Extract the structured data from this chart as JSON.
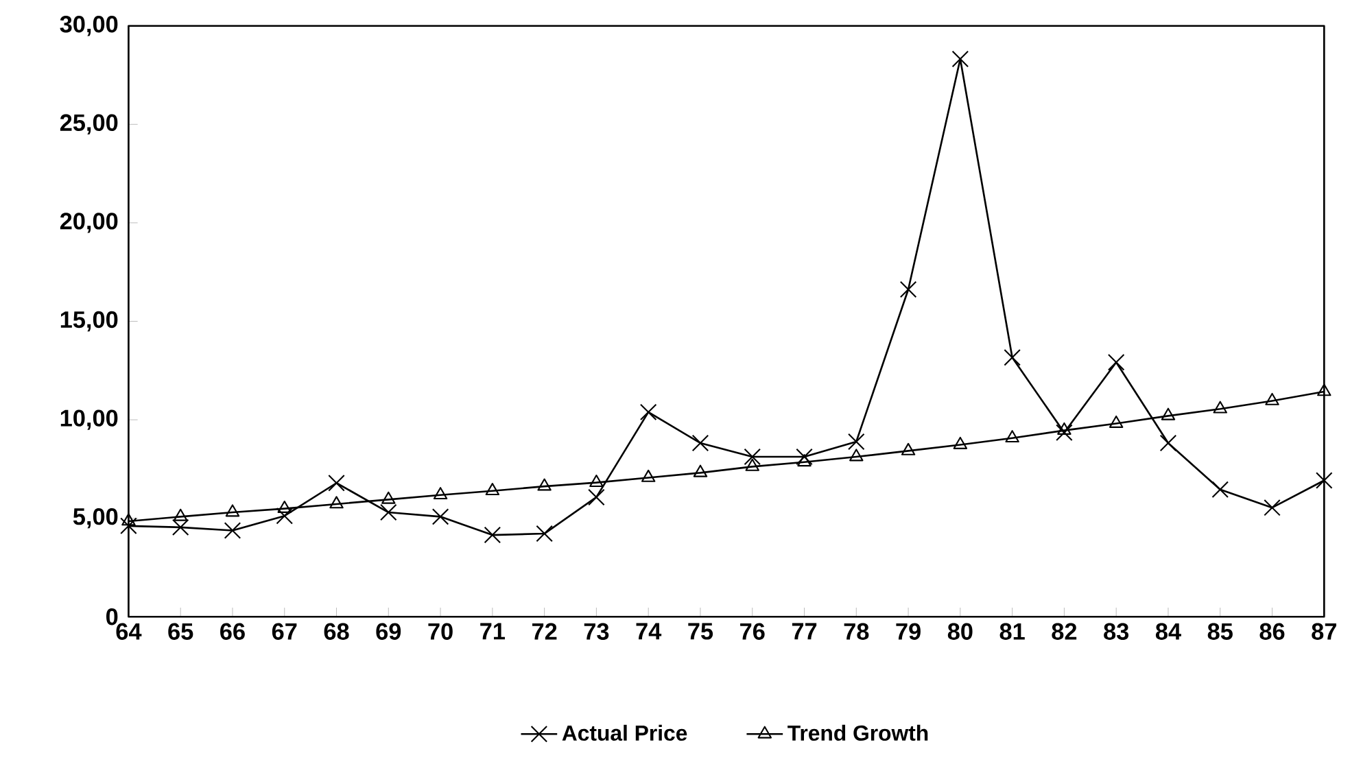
{
  "chart_data": {
    "type": "line",
    "categories": [
      "64",
      "65",
      "66",
      "67",
      "68",
      "69",
      "70",
      "71",
      "72",
      "73",
      "74",
      "75",
      "76",
      "77",
      "78",
      "79",
      "80",
      "81",
      "82",
      "83",
      "84",
      "85",
      "86",
      "87"
    ],
    "series": [
      {
        "name": "Actual Price",
        "color": "#000000",
        "marker": "cross",
        "values": [
          4.61,
          4.54,
          4.38,
          5.12,
          6.79,
          5.3,
          5.08,
          4.15,
          4.22,
          6.07,
          10.39,
          8.82,
          8.12,
          8.12,
          8.89,
          16.62,
          28.32,
          13.16,
          9.35,
          12.92,
          8.82,
          6.46,
          5.54,
          6.92
        ]
      },
      {
        "name": "Trend Growth",
        "color": "#000000",
        "marker": "triangle",
        "values": [
          4.85,
          5.08,
          5.3,
          5.49,
          5.72,
          5.95,
          6.18,
          6.39,
          6.62,
          6.81,
          7.06,
          7.31,
          7.62,
          7.85,
          8.12,
          8.42,
          8.73,
          9.07,
          9.46,
          9.81,
          10.2,
          10.55,
          10.96,
          11.43
        ]
      }
    ],
    "ylim": [
      0,
      30
    ],
    "yticks": [
      0,
      {
        "value": 5,
        "label": "5,00"
      },
      {
        "value": 10,
        "label": "10,00"
      },
      {
        "value": 15,
        "label": "15,00"
      },
      {
        "value": 20,
        "label": "20,00"
      },
      {
        "value": 25,
        "label": "25,00"
      },
      {
        "value": 30,
        "label": "30,00"
      }
    ],
    "legend": "bottom",
    "line_style": "solid"
  }
}
